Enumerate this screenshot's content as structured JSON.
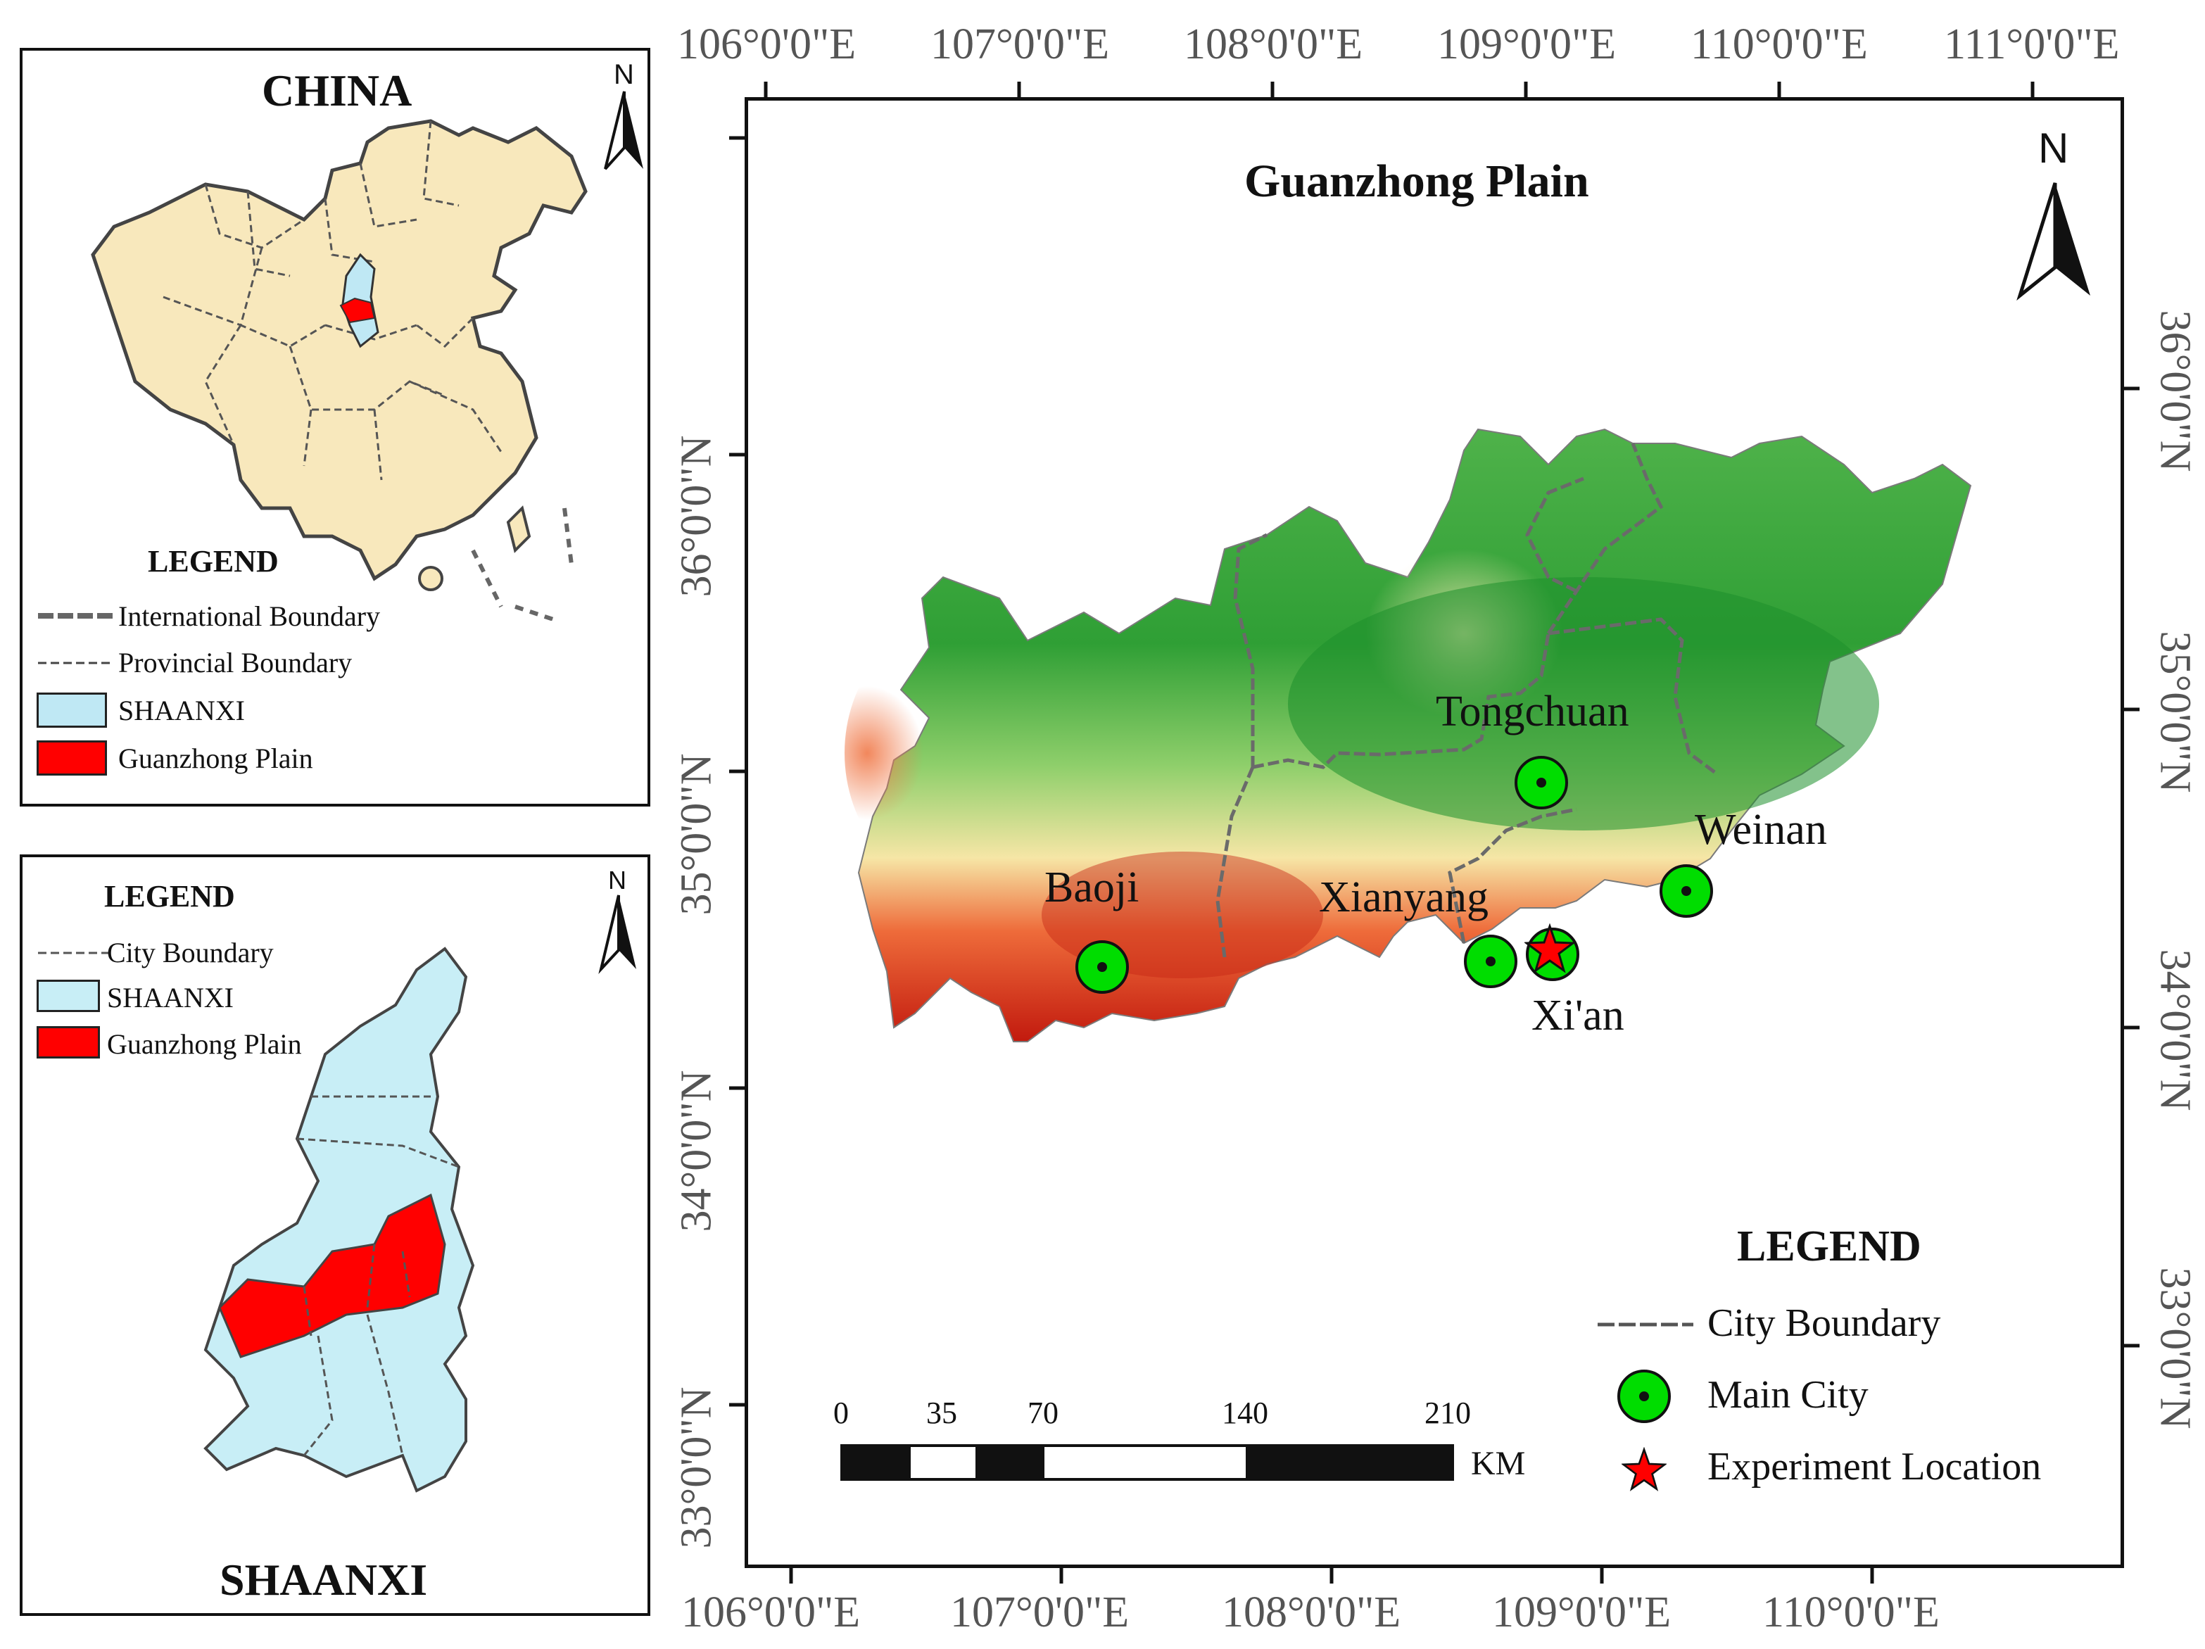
{
  "china_panel": {
    "title": "CHINA",
    "north": "N",
    "legend_title": "LEGEND",
    "legend_items": [
      {
        "label": "International Boundary",
        "type": "line"
      },
      {
        "label": "Provincial Boundary",
        "type": "dashed-line"
      },
      {
        "label": "SHAANXI",
        "type": "fill",
        "color": "#bfe8f4"
      },
      {
        "label": "Guanzhong Plain",
        "type": "fill",
        "color": "#ff0000"
      }
    ]
  },
  "shaanxi_panel": {
    "title": "SHAANXI",
    "north": "N",
    "legend_title": "LEGEND",
    "legend_items": [
      {
        "label": "City  Boundary",
        "type": "dashed-line"
      },
      {
        "label": "SHAANXI",
        "type": "fill",
        "color": "#c8eef6"
      },
      {
        "label": "Guanzhong Plain",
        "type": "fill",
        "color": "#ff0000"
      }
    ]
  },
  "main_map": {
    "title": "Guanzhong Plain",
    "north": "N",
    "top_lon_labels": [
      "106°0'0\"E",
      "107°0'0\"E",
      "108°0'0\"E",
      "109°0'0\"E",
      "110°0'0\"E",
      "111°0'0\"E"
    ],
    "bottom_lon_labels": [
      "106°0'0\"E",
      "107°0'0\"E",
      "108°0'0\"E",
      "109°0'0\"E",
      "110°0'0\"E"
    ],
    "left_lat_labels": [
      "36°0'0\"N",
      "35°0'0\"N",
      "34°0'0\"N",
      "33°0'0\"N"
    ],
    "right_lat_labels": [
      "36°0'0\"N",
      "35°0'0\"N",
      "34°0'0\"N",
      "33°0'0\"N"
    ],
    "cities": [
      {
        "name": "Tongchuan"
      },
      {
        "name": "Weinan"
      },
      {
        "name": "Baoji"
      },
      {
        "name": "Xianyang"
      },
      {
        "name": "Xi'an"
      }
    ],
    "legend_title": "LEGEND",
    "legend_items": [
      {
        "label": "City  Boundary"
      },
      {
        "label": "Main City"
      },
      {
        "label": "Experiment Location"
      }
    ],
    "scale_bar": {
      "ticks": [
        "0",
        "35",
        "70",
        "140",
        "210"
      ],
      "unit": "KM"
    },
    "colors": {
      "city_marker": "#00dd00",
      "experiment_star": "#ff0000",
      "lowland": "#2e9b2e",
      "upland": "#f4e3a0",
      "mountain": "#d42a12"
    }
  }
}
